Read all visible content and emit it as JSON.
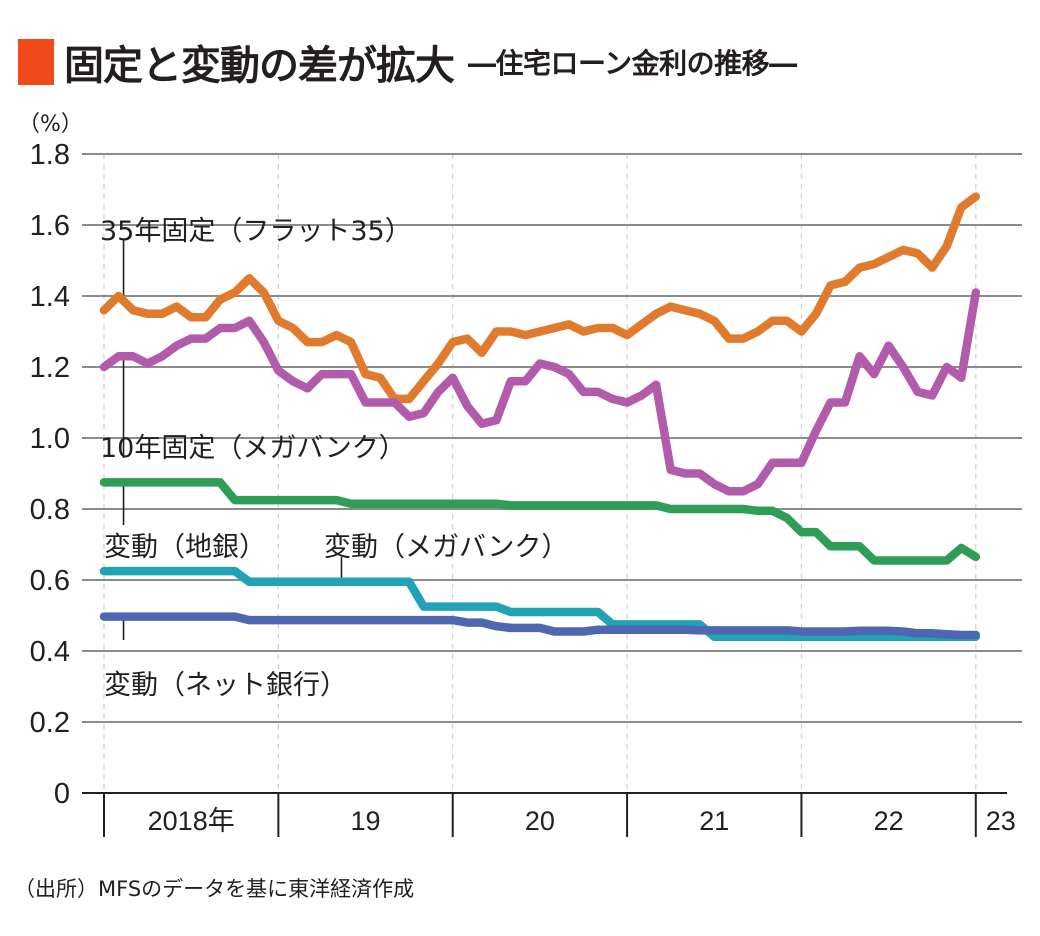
{
  "title": {
    "main": "固定と変動の差が拡大",
    "sub": "―住宅ローン金利の推移―",
    "accent_color": "#f04a1a"
  },
  "unit_label": "（%）",
  "source_note": "（出所）MFSのデータを基に東洋経済作成",
  "chart_data": {
    "type": "line",
    "title": "固定と変動の差が拡大 ―住宅ローン金利の推移―",
    "xlabel": "",
    "ylabel": "（%）",
    "ylim": [
      0,
      1.8
    ],
    "yticks": [
      0,
      0.2,
      0.4,
      0.6,
      0.8,
      1.0,
      1.2,
      1.4,
      1.6,
      1.8
    ],
    "ytick_labels": [
      "0",
      "0.2",
      "0.4",
      "0.6",
      "0.8",
      "1.0",
      "1.2",
      "1.4",
      "1.6",
      "1.8"
    ],
    "x_period": "monthly, 2018-01 to 2023-01",
    "x_year_labels": [
      "2018年",
      "19",
      "20",
      "21",
      "22",
      "23"
    ],
    "grid": true,
    "legend": "inline labels",
    "series": [
      {
        "name": "35年固定（フラット35）",
        "color": "#e07b2e",
        "values": [
          1.36,
          1.4,
          1.36,
          1.35,
          1.35,
          1.37,
          1.34,
          1.34,
          1.39,
          1.41,
          1.45,
          1.41,
          1.33,
          1.31,
          1.27,
          1.27,
          1.29,
          1.27,
          1.18,
          1.17,
          1.11,
          1.11,
          1.16,
          1.21,
          1.27,
          1.28,
          1.24,
          1.3,
          1.3,
          1.29,
          1.3,
          1.31,
          1.32,
          1.3,
          1.31,
          1.31,
          1.29,
          1.32,
          1.35,
          1.37,
          1.36,
          1.35,
          1.33,
          1.28,
          1.28,
          1.3,
          1.33,
          1.33,
          1.3,
          1.35,
          1.43,
          1.44,
          1.48,
          1.49,
          1.51,
          1.53,
          1.52,
          1.48,
          1.54,
          1.65,
          1.68
        ]
      },
      {
        "name": "10年固定（メガバンク）",
        "color": "#b35bab",
        "values": [
          1.2,
          1.23,
          1.23,
          1.21,
          1.23,
          1.26,
          1.28,
          1.28,
          1.31,
          1.31,
          1.33,
          1.27,
          1.19,
          1.16,
          1.14,
          1.18,
          1.18,
          1.18,
          1.1,
          1.1,
          1.1,
          1.06,
          1.07,
          1.13,
          1.17,
          1.09,
          1.04,
          1.05,
          1.16,
          1.16,
          1.21,
          1.2,
          1.18,
          1.13,
          1.13,
          1.11,
          1.1,
          1.12,
          1.15,
          0.91,
          0.9,
          0.9,
          0.87,
          0.85,
          0.85,
          0.87,
          0.93,
          0.93,
          0.93,
          1.02,
          1.1,
          1.1,
          1.23,
          1.18,
          1.26,
          1.2,
          1.13,
          1.12,
          1.2,
          1.17,
          1.41
        ]
      },
      {
        "name": "変動（地銀）",
        "color": "#2e9e57",
        "values": [
          0.875,
          0.875,
          0.875,
          0.875,
          0.875,
          0.875,
          0.875,
          0.875,
          0.875,
          0.825,
          0.825,
          0.825,
          0.825,
          0.825,
          0.825,
          0.825,
          0.825,
          0.815,
          0.815,
          0.815,
          0.815,
          0.815,
          0.815,
          0.815,
          0.815,
          0.815,
          0.815,
          0.815,
          0.81,
          0.81,
          0.81,
          0.81,
          0.81,
          0.81,
          0.81,
          0.81,
          0.81,
          0.81,
          0.81,
          0.8,
          0.8,
          0.8,
          0.8,
          0.8,
          0.8,
          0.795,
          0.795,
          0.775,
          0.735,
          0.735,
          0.695,
          0.695,
          0.695,
          0.655,
          0.655,
          0.655,
          0.655,
          0.655,
          0.655,
          0.69,
          0.665
        ]
      },
      {
        "name": "変動（メガバンク）",
        "color": "#1fa3b5",
        "values": [
          0.625,
          0.625,
          0.625,
          0.625,
          0.625,
          0.625,
          0.625,
          0.625,
          0.625,
          0.625,
          0.595,
          0.595,
          0.595,
          0.595,
          0.595,
          0.595,
          0.595,
          0.595,
          0.595,
          0.595,
          0.595,
          0.595,
          0.525,
          0.525,
          0.525,
          0.525,
          0.525,
          0.525,
          0.51,
          0.51,
          0.51,
          0.51,
          0.51,
          0.51,
          0.51,
          0.475,
          0.475,
          0.475,
          0.475,
          0.475,
          0.475,
          0.475,
          0.44,
          0.44,
          0.44,
          0.44,
          0.44,
          0.44,
          0.44,
          0.44,
          0.44,
          0.44,
          0.44,
          0.44,
          0.44,
          0.44,
          0.44,
          0.44,
          0.44,
          0.44,
          0.44
        ]
      },
      {
        "name": "変動（ネット銀行）",
        "color": "#4f67b0",
        "values": [
          0.497,
          0.497,
          0.497,
          0.497,
          0.497,
          0.497,
          0.497,
          0.497,
          0.497,
          0.497,
          0.487,
          0.487,
          0.487,
          0.487,
          0.487,
          0.487,
          0.487,
          0.487,
          0.487,
          0.487,
          0.487,
          0.487,
          0.487,
          0.487,
          0.487,
          0.48,
          0.48,
          0.47,
          0.465,
          0.465,
          0.465,
          0.455,
          0.455,
          0.455,
          0.46,
          0.46,
          0.46,
          0.46,
          0.46,
          0.46,
          0.46,
          0.458,
          0.458,
          0.458,
          0.458,
          0.458,
          0.458,
          0.458,
          0.455,
          0.455,
          0.455,
          0.455,
          0.457,
          0.457,
          0.457,
          0.455,
          0.45,
          0.45,
          0.447,
          0.445,
          0.445
        ]
      }
    ],
    "annotations": [
      {
        "series": 0,
        "text": "35年固定（フラット35）",
        "month_index": 1
      },
      {
        "series": 1,
        "text": "10年固定（メガバンク）",
        "month_index": 1
      },
      {
        "series": 2,
        "text": "変動（地銀）",
        "month_index": 1
      },
      {
        "series": 3,
        "text": "変動（メガバンク）",
        "month_index": 16
      },
      {
        "series": 4,
        "text": "変動（ネット銀行）",
        "month_index": 1
      }
    ]
  }
}
